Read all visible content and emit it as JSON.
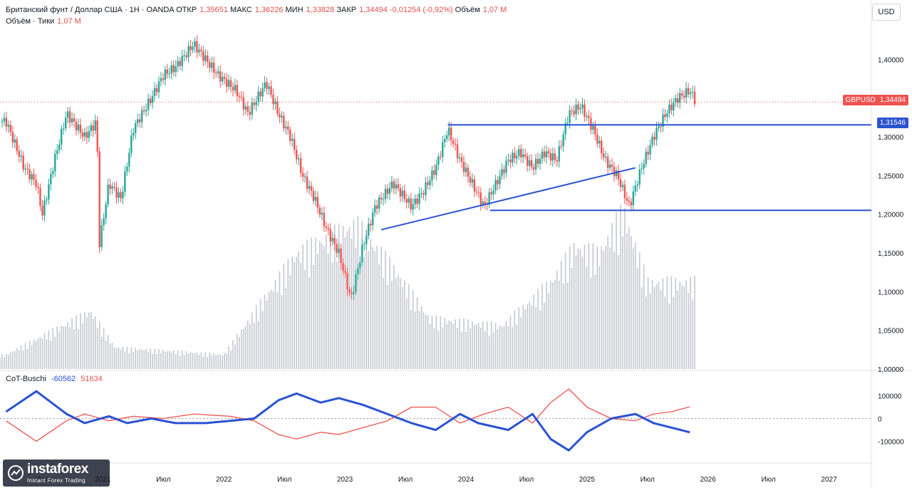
{
  "header": {
    "instrument": "Британский фунт / Доллар США · 1Н · OANDA",
    "open_label": "ОТКР",
    "open": "1,35651",
    "high_label": "МАКС",
    "high": "1,36226",
    "low_label": "МИН",
    "low": "1,33828",
    "close_label": "ЗАКР",
    "close": "1,34494",
    "change": "-0,01254 (-0,92%)",
    "volume_label": "Объём",
    "volume": "1,07 М",
    "volume_sub_label": "Объём · Тики",
    "volume_sub": "1,07 М"
  },
  "indicator": {
    "name": "CoT-Buschi",
    "value1": "-60562",
    "value2": "51634"
  },
  "currency_button": "USD",
  "last_price_tag": {
    "symbol": "GBPUSD",
    "value": "1,34494"
  },
  "level_tag": {
    "value": "1,31546"
  },
  "logo": {
    "name": "instaforex",
    "subtitle": "Instant Forex Trading"
  },
  "colors": {
    "up": "#26a69a",
    "down": "#ef5350",
    "level_line": "#2a52d1",
    "cot_blue": "#2a52d1",
    "cot_red": "#ef5350",
    "volume": "#c4c7cf"
  },
  "chart_data": {
    "type": "candlestick",
    "symbol": "GBPUSD",
    "price_axis": {
      "ticks": [
        "1,40000",
        "1,35000",
        "1,30000",
        "1,25000",
        "1,20000",
        "1,15000",
        "1,10000",
        "1,05000",
        "1,00000"
      ],
      "ylim": [
        1.0,
        1.44
      ]
    },
    "time_axis": {
      "ticks": [
        "Июл",
        "2021",
        "Июл",
        "2022",
        "Июл",
        "2023",
        "Июл",
        "2024",
        "Июл",
        "2025",
        "Июл",
        "2026",
        "Июл",
        "2027"
      ]
    },
    "cot_axis": {
      "ticks": [
        "100000",
        "0",
        "-100000"
      ]
    },
    "price_path": [
      [
        2020.2,
        1.32
      ],
      [
        2020.35,
        1.26
      ],
      [
        2020.45,
        1.24
      ],
      [
        2020.5,
        1.2
      ],
      [
        2020.6,
        1.27
      ],
      [
        2020.7,
        1.33
      ],
      [
        2020.85,
        1.3
      ],
      [
        2020.95,
        1.32
      ],
      [
        2020.97,
        1.16
      ],
      [
        2021.05,
        1.24
      ],
      [
        2021.15,
        1.22
      ],
      [
        2021.25,
        1.31
      ],
      [
        2021.4,
        1.35
      ],
      [
        2021.5,
        1.38
      ],
      [
        2021.6,
        1.39
      ],
      [
        2021.75,
        1.42
      ],
      [
        2021.85,
        1.4
      ],
      [
        2021.95,
        1.38
      ],
      [
        2022.1,
        1.36
      ],
      [
        2022.2,
        1.33
      ],
      [
        2022.35,
        1.37
      ],
      [
        2022.45,
        1.33
      ],
      [
        2022.55,
        1.3
      ],
      [
        2022.65,
        1.25
      ],
      [
        2022.75,
        1.22
      ],
      [
        2022.85,
        1.18
      ],
      [
        2022.95,
        1.15
      ],
      [
        2023.05,
        1.09
      ],
      [
        2023.15,
        1.16
      ],
      [
        2023.25,
        1.21
      ],
      [
        2023.4,
        1.24
      ],
      [
        2023.55,
        1.21
      ],
      [
        2023.65,
        1.23
      ],
      [
        2023.75,
        1.26
      ],
      [
        2023.85,
        1.31
      ],
      [
        2023.95,
        1.27
      ],
      [
        2024.05,
        1.24
      ],
      [
        2024.15,
        1.21
      ],
      [
        2024.25,
        1.24
      ],
      [
        2024.35,
        1.27
      ],
      [
        2024.45,
        1.28
      ],
      [
        2024.55,
        1.26
      ],
      [
        2024.65,
        1.28
      ],
      [
        2024.75,
        1.27
      ],
      [
        2024.85,
        1.33
      ],
      [
        2024.95,
        1.34
      ],
      [
        2025.05,
        1.31
      ],
      [
        2025.15,
        1.27
      ],
      [
        2025.25,
        1.25
      ],
      [
        2025.35,
        1.21
      ],
      [
        2025.45,
        1.26
      ],
      [
        2025.55,
        1.3
      ],
      [
        2025.65,
        1.33
      ],
      [
        2025.75,
        1.35
      ],
      [
        2025.85,
        1.36
      ],
      [
        2025.9,
        1.34494
      ]
    ],
    "levels": [
      {
        "name": "horizontal-1",
        "value": 1.31546,
        "from_x": 2023.85
      },
      {
        "name": "horizontal-2",
        "value": 1.205,
        "from_x": 2024.2
      }
    ],
    "trendline": {
      "from": [
        2023.3,
        1.18
      ],
      "to": [
        2025.4,
        1.26
      ]
    },
    "cot_blue": [
      [
        2020.2,
        30000
      ],
      [
        2020.45,
        120000
      ],
      [
        2020.7,
        20000
      ],
      [
        2020.85,
        -20000
      ],
      [
        2021.05,
        10000
      ],
      [
        2021.2,
        -20000
      ],
      [
        2021.4,
        0
      ],
      [
        2021.6,
        -20000
      ],
      [
        2021.85,
        -20000
      ],
      [
        2022.05,
        -10000
      ],
      [
        2022.25,
        0
      ],
      [
        2022.45,
        80000
      ],
      [
        2022.6,
        110000
      ],
      [
        2022.8,
        70000
      ],
      [
        2022.95,
        90000
      ],
      [
        2023.15,
        60000
      ],
      [
        2023.35,
        20000
      ],
      [
        2023.55,
        -20000
      ],
      [
        2023.75,
        -50000
      ],
      [
        2023.95,
        20000
      ],
      [
        2024.1,
        -20000
      ],
      [
        2024.35,
        -50000
      ],
      [
        2024.55,
        20000
      ],
      [
        2024.7,
        -90000
      ],
      [
        2024.85,
        -140000
      ],
      [
        2025.0,
        -60000
      ],
      [
        2025.2,
        0
      ],
      [
        2025.4,
        20000
      ],
      [
        2025.55,
        -20000
      ],
      [
        2025.7,
        -40000
      ],
      [
        2025.85,
        -60562
      ]
    ],
    "cot_red": [
      [
        2020.2,
        -10000
      ],
      [
        2020.45,
        -100000
      ],
      [
        2020.7,
        -10000
      ],
      [
        2020.85,
        20000
      ],
      [
        2021.05,
        -10000
      ],
      [
        2021.25,
        10000
      ],
      [
        2021.5,
        0
      ],
      [
        2021.75,
        20000
      ],
      [
        2022.05,
        10000
      ],
      [
        2022.25,
        -10000
      ],
      [
        2022.45,
        -70000
      ],
      [
        2022.6,
        -90000
      ],
      [
        2022.8,
        -60000
      ],
      [
        2022.95,
        -70000
      ],
      [
        2023.15,
        -40000
      ],
      [
        2023.35,
        -10000
      ],
      [
        2023.55,
        50000
      ],
      [
        2023.75,
        50000
      ],
      [
        2023.95,
        -20000
      ],
      [
        2024.15,
        20000
      ],
      [
        2024.35,
        50000
      ],
      [
        2024.55,
        -20000
      ],
      [
        2024.7,
        70000
      ],
      [
        2024.85,
        130000
      ],
      [
        2025.0,
        50000
      ],
      [
        2025.2,
        0
      ],
      [
        2025.4,
        -10000
      ],
      [
        2025.55,
        20000
      ],
      [
        2025.7,
        30000
      ],
      [
        2025.85,
        51634
      ]
    ],
    "volume_profile": [
      [
        2020.2,
        0.02
      ],
      [
        2020.9,
        0.08
      ],
      [
        2021.1,
        0.03
      ],
      [
        2022.0,
        0.02
      ],
      [
        2022.6,
        0.16
      ],
      [
        2022.95,
        0.19
      ],
      [
        2023.1,
        0.2
      ],
      [
        2023.4,
        0.14
      ],
      [
        2023.7,
        0.07
      ],
      [
        2024.3,
        0.06
      ],
      [
        2024.7,
        0.12
      ],
      [
        2024.9,
        0.17
      ],
      [
        2025.1,
        0.16
      ],
      [
        2025.3,
        0.22
      ],
      [
        2025.5,
        0.12
      ],
      [
        2025.85,
        0.12
      ]
    ]
  }
}
